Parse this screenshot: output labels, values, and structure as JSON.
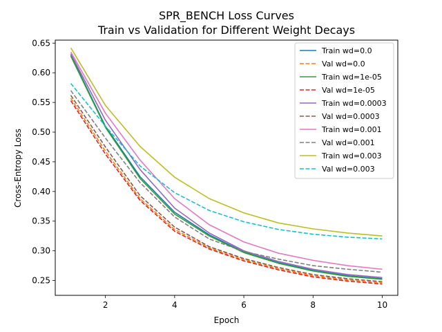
{
  "chart_data": {
    "type": "line",
    "title": "SPR_BENCH Loss Curves",
    "subtitle": "Train vs Validation for Different Weight Decays",
    "xlabel": "Epoch",
    "ylabel": "Cross-Entropy Loss",
    "xlim": [
      0.55,
      10.45
    ],
    "ylim": [
      0.225,
      0.655
    ],
    "xticks": [
      2,
      4,
      6,
      8,
      10
    ],
    "yticks": [
      0.25,
      0.3,
      0.35,
      0.4,
      0.45,
      0.5,
      0.55,
      0.6,
      0.65
    ],
    "legend_position": "top-right",
    "grid": false,
    "x": [
      1,
      2,
      3,
      4,
      5,
      6,
      7,
      8,
      9,
      10
    ],
    "series": [
      {
        "name": "Train wd=0.0",
        "color": "#1f77b4",
        "dash": "solid",
        "values": [
          0.63,
          0.51,
          0.425,
          0.365,
          0.327,
          0.298,
          0.28,
          0.267,
          0.258,
          0.253
        ]
      },
      {
        "name": "Val wd=0.0",
        "color": "#ff7f0e",
        "dash": "dashed",
        "values": [
          0.557,
          0.468,
          0.388,
          0.336,
          0.305,
          0.285,
          0.27,
          0.258,
          0.251,
          0.246
        ]
      },
      {
        "name": "Train wd=1e-05",
        "color": "#2ca02c",
        "dash": "solid",
        "values": [
          0.628,
          0.508,
          0.422,
          0.362,
          0.325,
          0.297,
          0.279,
          0.266,
          0.257,
          0.252
        ]
      },
      {
        "name": "Val wd=1e-05",
        "color": "#d62728",
        "dash": "dashed",
        "values": [
          0.553,
          0.463,
          0.385,
          0.333,
          0.303,
          0.283,
          0.268,
          0.256,
          0.249,
          0.244
        ]
      },
      {
        "name": "Train wd=0.0003",
        "color": "#9467bd",
        "dash": "solid",
        "values": [
          0.632,
          0.52,
          0.437,
          0.372,
          0.33,
          0.3,
          0.282,
          0.269,
          0.26,
          0.255
        ]
      },
      {
        "name": "Val wd=0.0003",
        "color": "#8c564b",
        "dash": "dashed",
        "values": [
          0.562,
          0.475,
          0.393,
          0.34,
          0.307,
          0.287,
          0.272,
          0.26,
          0.253,
          0.248
        ]
      },
      {
        "name": "Train wd=0.001",
        "color": "#e377c2",
        "dash": "solid",
        "values": [
          0.635,
          0.532,
          0.453,
          0.388,
          0.344,
          0.315,
          0.296,
          0.284,
          0.275,
          0.269
        ]
      },
      {
        "name": "Val wd=0.001",
        "color": "#7f7f7f",
        "dash": "dashed",
        "values": [
          0.57,
          0.49,
          0.415,
          0.357,
          0.32,
          0.299,
          0.286,
          0.275,
          0.269,
          0.264
        ]
      },
      {
        "name": "Train wd=0.003",
        "color": "#bcbd22",
        "dash": "solid",
        "values": [
          0.642,
          0.545,
          0.476,
          0.424,
          0.388,
          0.364,
          0.347,
          0.337,
          0.33,
          0.325
        ]
      },
      {
        "name": "Val wd=0.003",
        "color": "#17becf",
        "dash": "dashed",
        "values": [
          0.582,
          0.51,
          0.443,
          0.398,
          0.368,
          0.349,
          0.336,
          0.328,
          0.323,
          0.32
        ]
      }
    ]
  }
}
